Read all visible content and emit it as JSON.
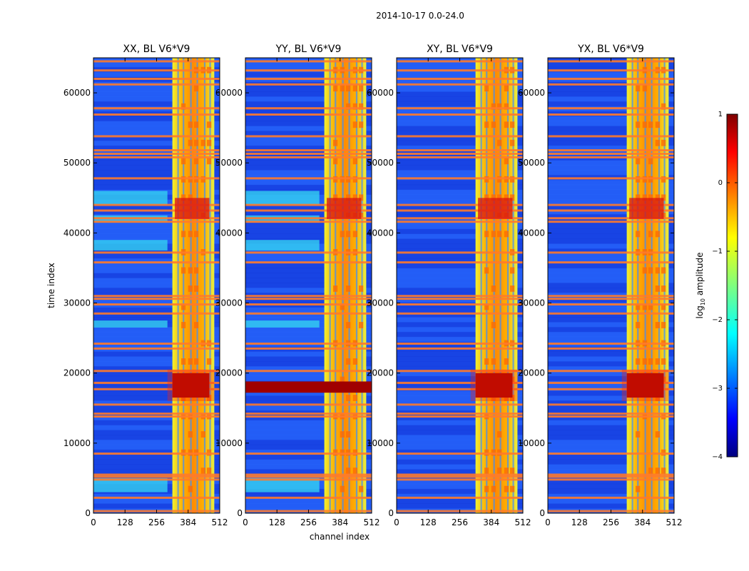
{
  "chart_data": {
    "type": "heatmap",
    "suptitle": "2014-10-17 0.0-24.0",
    "xlabel": "channel index",
    "ylabel": "time index",
    "xlim": [
      0,
      512
    ],
    "ylim": [
      0,
      65000
    ],
    "xticks": [
      0,
      128,
      256,
      384,
      512
    ],
    "yticks": [
      0,
      10000,
      20000,
      30000,
      40000,
      50000,
      60000
    ],
    "colorbar": {
      "label": "log10 amplitude",
      "label_main": "log",
      "label_sub": "10",
      "label_rest": " amplitude",
      "range": [
        -4,
        1
      ],
      "ticks": [
        1,
        0,
        -1,
        -2,
        -3,
        -4
      ],
      "tick_labels": [
        "1",
        "0",
        "−1",
        "−2",
        "−3",
        "−4"
      ],
      "colormap": "jet"
    },
    "panels": [
      {
        "title": "XX, BL V6*V9",
        "polarization": "XX",
        "bright_band_channels": [
          320,
          490
        ],
        "strong_rfi_time": [
          16500,
          20000
        ],
        "strong_rfi_channels": [
          320,
          470
        ]
      },
      {
        "title": "YY, BL V6*V9",
        "polarization": "YY",
        "bright_band_channels": [
          320,
          490
        ],
        "strong_rfi_time": [
          17200,
          18800
        ],
        "strong_rfi_channels": [
          0,
          512
        ]
      },
      {
        "title": "XY, BL V6*V9",
        "polarization": "XY",
        "bright_band_channels": [
          320,
          490
        ],
        "strong_rfi_time": [
          16500,
          20000
        ],
        "strong_rfi_channels": [
          320,
          470
        ]
      },
      {
        "title": "YX, BL V6*V9",
        "polarization": "YX",
        "bright_band_channels": [
          320,
          490
        ],
        "strong_rfi_time": [
          16500,
          20000
        ],
        "strong_rfi_channels": [
          320,
          470
        ]
      }
    ],
    "rfi_time_lines": [
      300,
      2200,
      4800,
      5200,
      5500,
      8500,
      13800,
      14200,
      15500,
      17700,
      18600,
      20300,
      23500,
      24200,
      28500,
      29800,
      30600,
      31000,
      35800,
      37200,
      41600,
      42100,
      43200,
      44000,
      47800,
      50800,
      51300,
      51800,
      53800,
      56900,
      57800,
      61200,
      62000,
      63200,
      64500
    ]
  }
}
